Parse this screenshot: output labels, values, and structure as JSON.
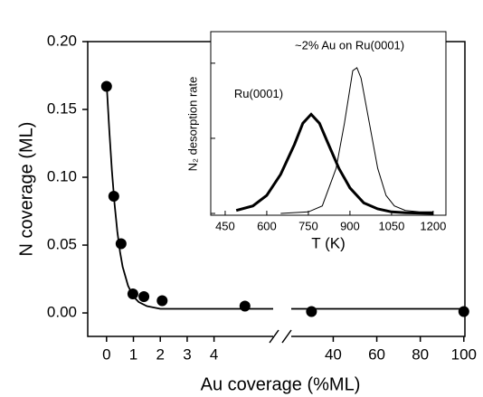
{
  "chart_data": [
    {
      "type": "scatter",
      "xlabel": "Au coverage (%ML)",
      "ylabel": "N coverage (ML)",
      "ylim": [
        -0.0173,
        0.2
      ],
      "yticks": [
        {
          "value": 0,
          "label": "0.00"
        },
        {
          "value": 0.05,
          "label": "0.05"
        },
        {
          "value": 0.1,
          "label": "0.10"
        },
        {
          "value": 0.15,
          "label": "0.15"
        },
        {
          "value": 0.2,
          "label": "0.20"
        }
      ],
      "x_segments": [
        {
          "xlim": [
            -0.7,
            6.2
          ],
          "xticks": [
            0,
            1,
            2,
            3,
            4
          ]
        },
        {
          "xlim": [
            20.7,
            100.5
          ],
          "xticks": [
            40,
            60,
            80,
            100
          ]
        }
      ],
      "series": [
        {
          "type": "scatter",
          "color": "#000000",
          "x": [
            0,
            0.27,
            0.54,
            0.98,
            1.39,
            2.07,
            5.15,
            30,
            100
          ],
          "values": [
            0.167,
            0.086,
            0.051,
            0.014,
            0.012,
            0.009,
            0.005,
            0.001,
            0.001
          ]
        },
        {
          "type": "line",
          "color": "#000000",
          "x": [
            0,
            0.1,
            0.2,
            0.3,
            0.4,
            0.5,
            0.6,
            0.8,
            1.0,
            1.2,
            1.5,
            2,
            3,
            4,
            6.2,
            12,
            20.7,
            100.5
          ],
          "values": [
            0.17,
            0.135,
            0.105,
            0.08,
            0.06,
            0.045,
            0.034,
            0.02,
            0.012,
            0.008,
            0.005,
            0.003,
            0.003,
            0.003,
            0.003,
            null,
            0.003,
            0.003
          ]
        }
      ]
    },
    {
      "type": "line",
      "xlabel": "T (K)",
      "ylabel": "N₂ desorption rate",
      "xlim": [
        398,
        1246
      ],
      "xticks": [
        450,
        600,
        750,
        900,
        1050,
        1200
      ],
      "ylim": [
        -0.012,
        1.21
      ],
      "yticks": [
        0,
        0.5,
        1
      ],
      "series": [
        {
          "name": "Ru(0001)",
          "color": "#000000",
          "line_width": 3,
          "x": [
            490,
            550,
            600,
            650,
            700,
            730,
            760,
            790,
            820,
            860,
            900,
            950,
            1000,
            1050,
            1100,
            1200
          ],
          "values": [
            0.02,
            0.05,
            0.12,
            0.26,
            0.46,
            0.6,
            0.66,
            0.6,
            0.47,
            0.3,
            0.17,
            0.07,
            0.03,
            0.01,
            0.005,
            0.0
          ]
        },
        {
          "name": "~2% Au on Ru(0001)",
          "color": "#000000",
          "line_width": 1,
          "x": [
            650,
            750,
            800,
            850,
            880,
            910,
            925,
            940,
            970,
            1000,
            1030,
            1060,
            1100,
            1150,
            1200
          ],
          "values": [
            0.0,
            0.01,
            0.05,
            0.3,
            0.6,
            0.95,
            0.97,
            0.9,
            0.6,
            0.3,
            0.12,
            0.05,
            0.02,
            0.01,
            0.01
          ]
        }
      ]
    }
  ]
}
